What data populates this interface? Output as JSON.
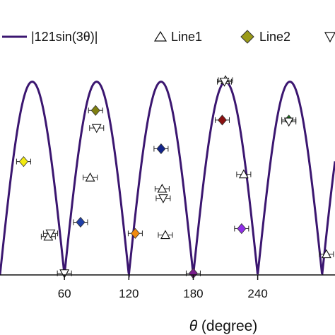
{
  "chart_data": {
    "type": "line",
    "xlabel": {
      "symbol": "θ",
      "text": " (degree)"
    },
    "xlim": [
      0,
      312
    ],
    "ylim": [
      0,
      135
    ],
    "x_ticks": [
      "60",
      "120",
      "180",
      "240"
    ],
    "x_tick_values": [
      60,
      120,
      180,
      240
    ],
    "curve": {
      "name": "|121sin(3θ)|",
      "amplitude": 121,
      "frequency": 3,
      "color": "#3b1670"
    },
    "legend": {
      "placement": "top",
      "entries": [
        {
          "label": "|121sin(3θ)|",
          "kind": "line"
        },
        {
          "label": "Line1",
          "kind": "triangle-up"
        },
        {
          "label": "Line2",
          "kind": "diamond"
        },
        {
          "label": "",
          "kind": "triangle-down"
        }
      ]
    },
    "series": [
      {
        "name": "Line1",
        "marker": "triangle-up",
        "points": [
          [
            45,
            24
          ],
          [
            84,
            61
          ],
          [
            151,
            54
          ],
          [
            154,
            25
          ],
          [
            210,
            122
          ],
          [
            227,
            63
          ],
          [
            304,
            13
          ]
        ]
      },
      {
        "name": "Line2",
        "marker": "diamond",
        "points": [
          [
            22,
            71,
            "#f2ea10"
          ],
          [
            75,
            33,
            "#1f3fa8"
          ],
          [
            89,
            103,
            "#7f7f10"
          ],
          [
            126,
            26,
            "#f08a10"
          ],
          [
            150,
            79,
            "#12248a"
          ],
          [
            180,
            1,
            "#7a1c8c"
          ],
          [
            207,
            97,
            "#8a1010"
          ],
          [
            225,
            29,
            "#8f2fe8"
          ],
          [
            269,
            97,
            "#1d7a1d"
          ]
        ]
      },
      {
        "name": "",
        "marker": "triangle-down",
        "points": [
          [
            47,
            26
          ],
          [
            60,
            1
          ],
          [
            90,
            92
          ],
          [
            152,
            48
          ],
          [
            209,
            121
          ],
          [
            269,
            96
          ]
        ]
      }
    ]
  }
}
